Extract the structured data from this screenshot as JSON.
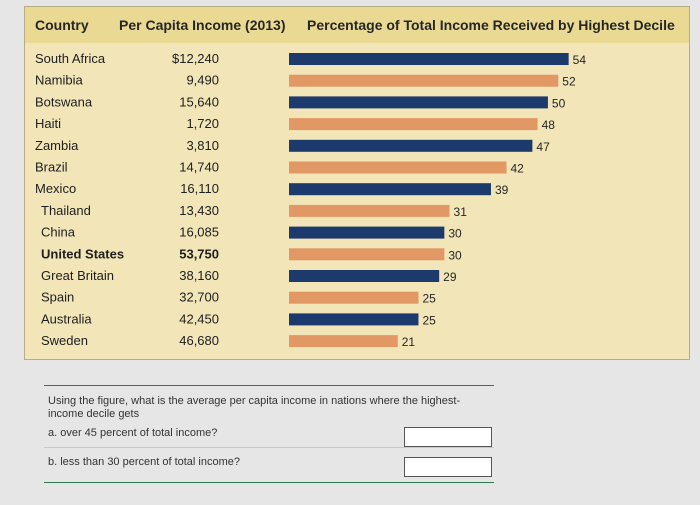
{
  "header": {
    "country": "Country",
    "income": "Per Capita Income (2013)",
    "percentage": "Percentage of Total Income Received by Highest Decile"
  },
  "chart_data": {
    "type": "bar",
    "orientation": "horizontal",
    "categories": [
      "South Africa",
      "Namibia",
      "Botswana",
      "Haiti",
      "Zambia",
      "Brazil",
      "Mexico",
      "Thailand",
      "China",
      "United States",
      "Great Britain",
      "Spain",
      "Australia",
      "Sweden"
    ],
    "incomes": [
      "$12,240",
      "9,490",
      "15,640",
      "1,720",
      "3,810",
      "14,740",
      "16,110",
      "13,430",
      "16,085",
      "53,750",
      "38,160",
      "32,700",
      "42,450",
      "46,680"
    ],
    "values": [
      54,
      52,
      50,
      48,
      47,
      42,
      39,
      31,
      30,
      30,
      29,
      25,
      25,
      21
    ],
    "highlight": [
      "United States"
    ],
    "xlim": [
      0,
      56
    ],
    "colors": {
      "dark": "#1c3a6b",
      "light": "#e29865"
    }
  },
  "question": {
    "prompt": "Using the figure, what is the average per capita income in nations where the highest-income decile gets",
    "a": "a. over 45 percent of total income?",
    "b": "b. less than 30 percent of total income?",
    "answer_a": "",
    "answer_b": ""
  }
}
